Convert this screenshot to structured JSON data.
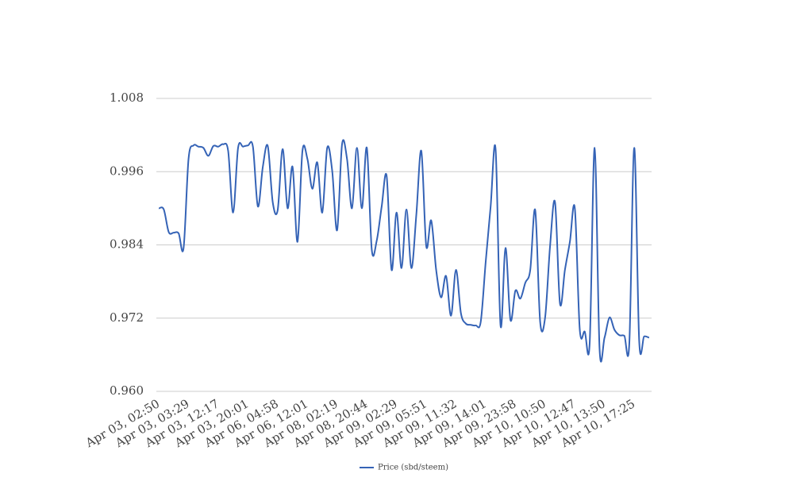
{
  "chart_data": {
    "type": "line",
    "categories": [
      "Apr 03, 02:50",
      null,
      null,
      null,
      null,
      null,
      "Apr 03, 03:29",
      null,
      null,
      null,
      null,
      null,
      "Apr 03, 12:17",
      null,
      null,
      null,
      null,
      null,
      "Apr 03, 20:01",
      null,
      null,
      null,
      null,
      null,
      "Apr 06, 04:58",
      null,
      null,
      null,
      null,
      null,
      "Apr 06, 12:01",
      null,
      null,
      null,
      null,
      null,
      "Apr 08, 02:19",
      null,
      null,
      null,
      null,
      null,
      "Apr 08, 20:44",
      null,
      null,
      null,
      null,
      null,
      "Apr 09, 02:29",
      null,
      null,
      null,
      null,
      null,
      "Apr 09, 05:51",
      null,
      null,
      null,
      null,
      null,
      "Apr 09, 11:32",
      null,
      null,
      null,
      null,
      null,
      "Apr 09, 14:01",
      null,
      null,
      null,
      null,
      null,
      "Apr 09, 23:58",
      null,
      null,
      null,
      null,
      null,
      "Apr 10, 10:50",
      null,
      null,
      null,
      null,
      null,
      "Apr 10, 12:47",
      null,
      null,
      null,
      null,
      null,
      "Apr 10, 13:50",
      null,
      null,
      null,
      null,
      null,
      "Apr 10, 17:25",
      null,
      null,
      null
    ],
    "series": [
      {
        "name": "Price (sbd/steem)",
        "color": "#3563b6",
        "values": [
          0.99,
          0.9898,
          0.9861,
          0.986,
          0.9859,
          0.9835,
          0.9981,
          1.0003,
          1.0001,
          0.9999,
          0.9986,
          1.0002,
          1.0001,
          1.0005,
          0.9994,
          0.9893,
          0.9999,
          1.0001,
          1.0003,
          1.0001,
          0.9903,
          0.9968,
          1.0002,
          0.991,
          0.9897,
          0.9997,
          0.99,
          0.9968,
          0.9845,
          0.9994,
          0.9981,
          0.9932,
          0.9975,
          0.9893,
          0.9999,
          0.9962,
          0.9864,
          1.0005,
          0.9981,
          0.99,
          0.9999,
          0.99,
          0.9999,
          0.9832,
          0.9847,
          0.9903,
          0.9953,
          0.9799,
          0.9893,
          0.9802,
          0.9898,
          0.9802,
          0.989,
          0.9994,
          0.9838,
          0.988,
          0.9799,
          0.9754,
          0.9789,
          0.9724,
          0.9799,
          0.9728,
          0.9711,
          0.9709,
          0.9708,
          0.9714,
          0.9812,
          0.9903,
          0.9997,
          0.9708,
          0.9835,
          0.9717,
          0.9765,
          0.9752,
          0.9778,
          0.9799,
          0.9897,
          0.9714,
          0.9721,
          0.9838,
          0.991,
          0.9744,
          0.9799,
          0.9845,
          0.99,
          0.9701,
          0.9698,
          0.9679,
          0.9999,
          0.9669,
          0.9688,
          0.9721,
          0.9701,
          0.9692,
          0.9691,
          0.9678,
          0.9999,
          0.9682,
          0.969,
          0.9688
        ]
      }
    ],
    "ylim": [
      0.96,
      1.008
    ],
    "yticks": [
      {
        "value": 0.96,
        "label": "0.960"
      },
      0.972,
      0.984,
      0.996,
      1.008
    ],
    "grid": true,
    "legend": "bottom"
  }
}
